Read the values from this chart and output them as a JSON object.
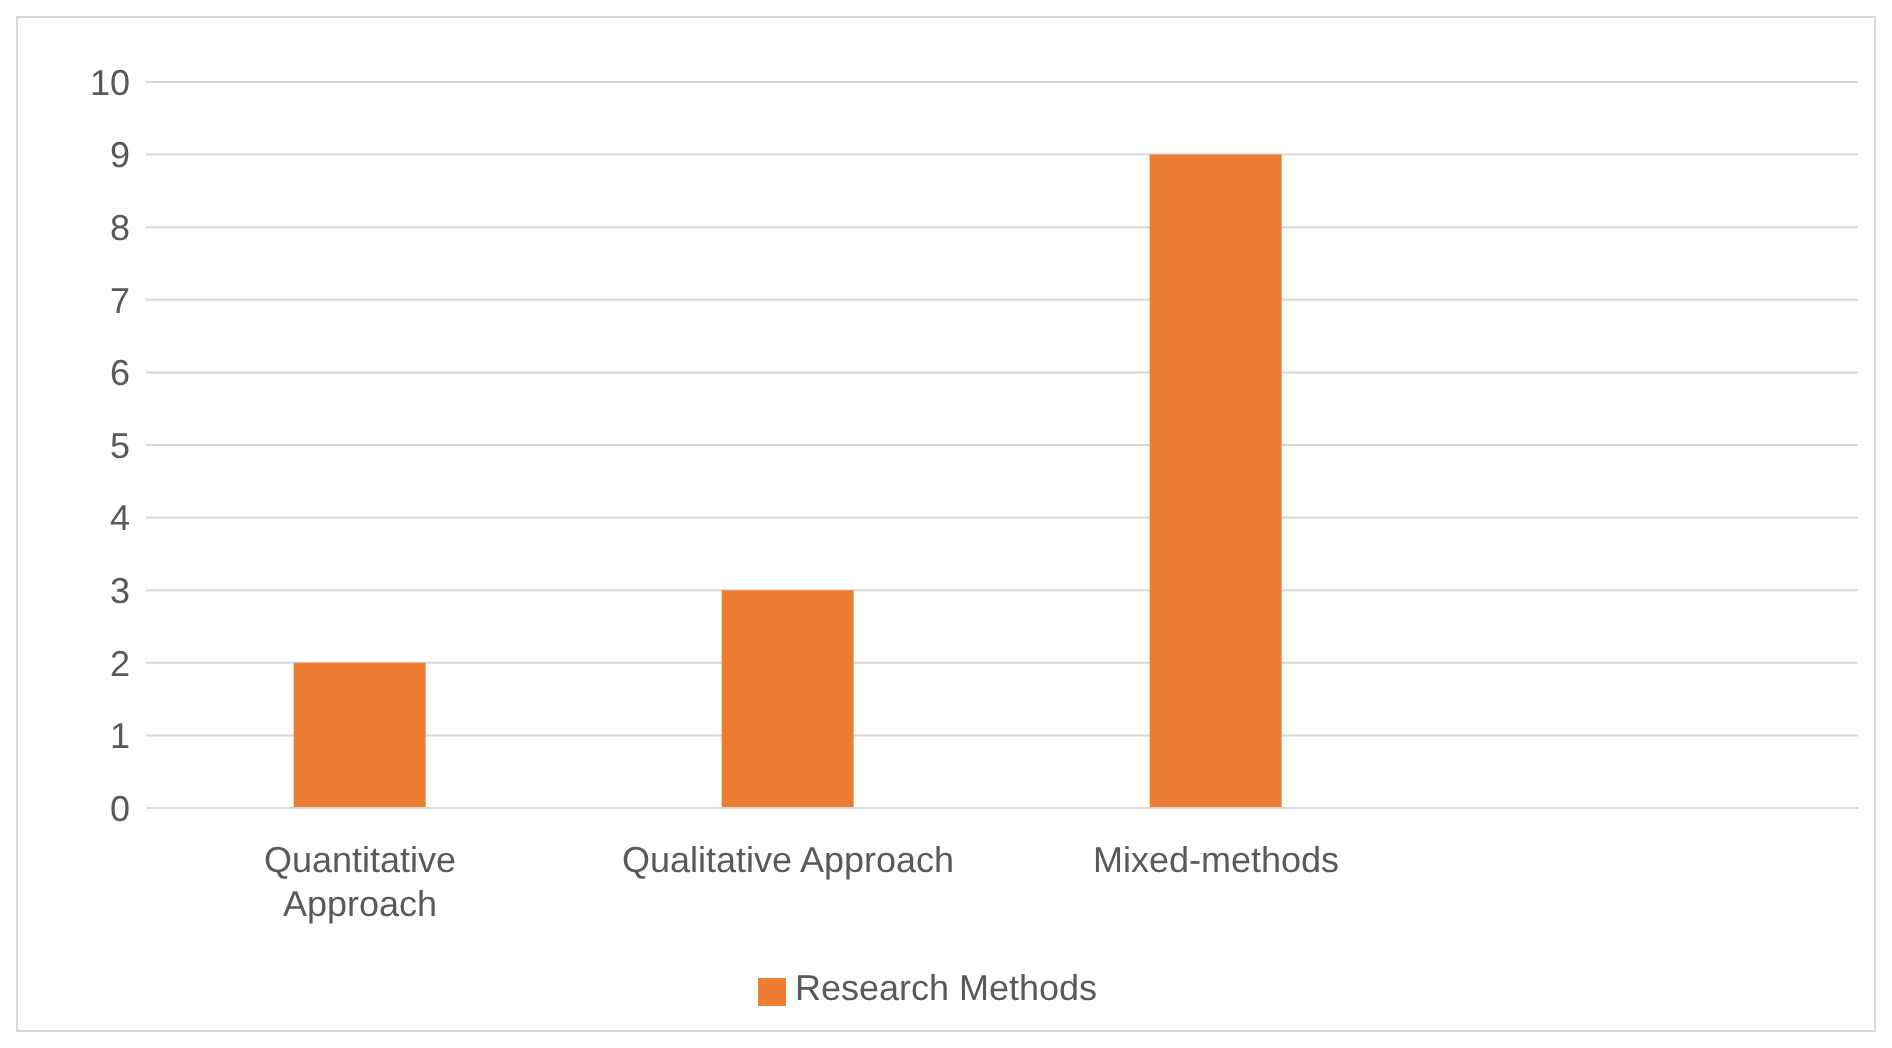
{
  "chart_data": {
    "type": "bar",
    "categories": [
      "Quantitative Approach",
      "Qualitative Approach",
      "Mixed-methods",
      null
    ],
    "series": [
      {
        "name": "Research Methods",
        "color": "#ed7d31",
        "values": [
          2,
          3,
          9,
          null
        ]
      }
    ],
    "ylim": [
      0,
      10
    ],
    "yticks": [
      0,
      1,
      2,
      3,
      4,
      5,
      6,
      7,
      8,
      9,
      10
    ],
    "grid": "y",
    "legend": "bottom"
  }
}
